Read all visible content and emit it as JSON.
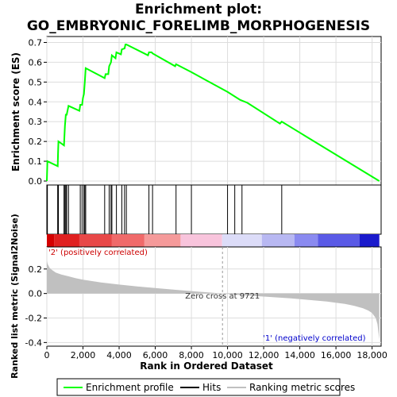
{
  "chart_data": [
    {
      "type": "line",
      "title_line1": "Enrichment plot:",
      "title_line2": "GO_EMBRYONIC_FORELIMB_MORPHOGENESIS",
      "ylabel": "Enrichment score (ES)",
      "xlim": [
        0,
        18500
      ],
      "ylim": [
        -0.02,
        0.73
      ],
      "yticks": [
        "0.0",
        "0.1",
        "0.2",
        "0.3",
        "0.4",
        "0.5",
        "0.6",
        "0.7"
      ],
      "ytick_values": [
        0.0,
        0.1,
        0.2,
        0.3,
        0.4,
        0.5,
        0.6,
        0.7
      ],
      "grid": true,
      "line_color": "#00ff00",
      "series": [
        {
          "name": "Enrichment profile",
          "x": [
            0,
            30,
            600,
            620,
            640,
            950,
            980,
            1000,
            1050,
            1100,
            1200,
            1800,
            1850,
            1950,
            2000,
            2050,
            2100,
            2150,
            3200,
            3250,
            3400,
            3450,
            3550,
            3600,
            3800,
            3850,
            4100,
            4150,
            4300,
            4350,
            4400,
            5600,
            5650,
            5800,
            5850,
            7100,
            7150,
            8000,
            10000,
            10700,
            11100,
            12900,
            13000,
            18400
          ],
          "y": [
            0.0,
            0.1,
            0.075,
            0.14,
            0.2,
            0.18,
            0.24,
            0.28,
            0.335,
            0.335,
            0.38,
            0.355,
            0.385,
            0.385,
            0.42,
            0.44,
            0.5,
            0.57,
            0.52,
            0.54,
            0.54,
            0.58,
            0.6,
            0.635,
            0.62,
            0.65,
            0.64,
            0.665,
            0.67,
            0.69,
            0.69,
            0.635,
            0.65,
            0.65,
            0.645,
            0.58,
            0.59,
            0.55,
            0.45,
            0.41,
            0.395,
            0.29,
            0.3,
            0.0
          ]
        }
      ]
    },
    {
      "type": "hits",
      "name": "Hits",
      "hit_positions": [
        30,
        600,
        620,
        640,
        950,
        1000,
        1050,
        1100,
        1200,
        1850,
        1950,
        2050,
        2100,
        2150,
        3200,
        3450,
        3550,
        3600,
        3850,
        4150,
        4300,
        4400,
        5650,
        5850,
        7150,
        8000,
        10000,
        10400,
        10800,
        13000
      ]
    },
    {
      "type": "area",
      "name": "Ranking metric scores",
      "xlabel": "Rank in Ordered Dataset",
      "ylabel": "Ranked list metric (Signal2Noise)",
      "xlim": [
        0,
        18500
      ],
      "ylim": [
        -0.43,
        0.38
      ],
      "xticks": [
        "0",
        "2,000",
        "4,000",
        "6,000",
        "8,000",
        "10,000",
        "12,000",
        "14,000",
        "16,000",
        "18,000"
      ],
      "xtick_values": [
        0,
        2000,
        4000,
        6000,
        8000,
        10000,
        12000,
        14000,
        16000,
        18000
      ],
      "yticks": [
        "0.2",
        "0.0",
        "-0.2",
        "-0.4"
      ],
      "ytick_values": [
        0.2,
        0.0,
        -0.2,
        -0.4
      ],
      "x": [
        0,
        50,
        150,
        300,
        500,
        800,
        1200,
        1600,
        2000,
        3000,
        4000,
        5000,
        6000,
        7000,
        8000,
        9000,
        9721,
        10500,
        11500,
        12500,
        13500,
        14500,
        15500,
        16500,
        17000,
        17500,
        17800,
        18000,
        18200,
        18300,
        18400
      ],
      "values": [
        0.27,
        0.24,
        0.21,
        0.19,
        0.17,
        0.155,
        0.14,
        0.125,
        0.113,
        0.09,
        0.073,
        0.058,
        0.045,
        0.032,
        0.02,
        0.008,
        0.0,
        -0.01,
        -0.02,
        -0.03,
        -0.04,
        -0.052,
        -0.066,
        -0.085,
        -0.1,
        -0.12,
        -0.14,
        -0.16,
        -0.2,
        -0.25,
        -0.38
      ],
      "fill_color": "#c0c0c0",
      "zero_cross_label": "Zero cross at 9721",
      "zero_cross_x": 9721,
      "pos_label": "'2' (positively correlated)",
      "neg_label": "'1' (negatively correlated)",
      "pos_color": "#cc0000",
      "neg_color": "#0000cc"
    }
  ],
  "colorbar": {
    "segments": [
      {
        "from": 0,
        "to": 400,
        "color": "#d40000"
      },
      {
        "from": 400,
        "to": 1800,
        "color": "#e02020"
      },
      {
        "from": 1800,
        "to": 3600,
        "color": "#e84848"
      },
      {
        "from": 3600,
        "to": 5400,
        "color": "#f06a6a"
      },
      {
        "from": 5400,
        "to": 7400,
        "color": "#f59a9a"
      },
      {
        "from": 7400,
        "to": 9700,
        "color": "#f8c4dc"
      },
      {
        "from": 9700,
        "to": 11900,
        "color": "#dcdcf8"
      },
      {
        "from": 11900,
        "to": 13700,
        "color": "#b8b8f2"
      },
      {
        "from": 13700,
        "to": 15000,
        "color": "#8a8af0"
      },
      {
        "from": 15000,
        "to": 17300,
        "color": "#5a5ae6"
      },
      {
        "from": 17300,
        "to": 18400,
        "color": "#1a1acc"
      }
    ]
  },
  "legend": {
    "items": [
      {
        "label": "Enrichment profile",
        "color": "#00ff00"
      },
      {
        "label": "Hits",
        "color": "#000000"
      },
      {
        "label": "Ranking metric scores",
        "color": "#c0c0c0"
      }
    ]
  }
}
